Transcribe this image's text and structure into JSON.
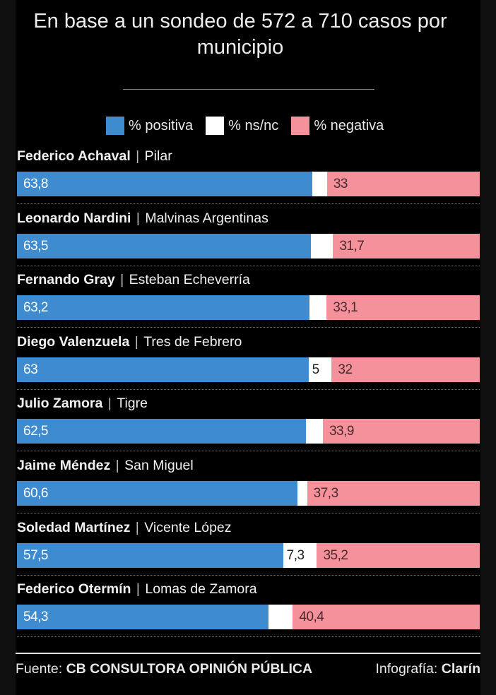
{
  "title": "En base a un sondeo de 572 a 710 casos por municipio",
  "legend": [
    {
      "label": "% positiva",
      "color": "#3e8bd0"
    },
    {
      "label": "% ns/nc",
      "color": "#ffffff"
    },
    {
      "label": "% negativa",
      "color": "#f5919a"
    }
  ],
  "chart_data": {
    "type": "bar",
    "orientation": "horizontal-stacked-100",
    "title": "En base a un sondeo de 572 a 710 casos por municipio",
    "categories": [
      {
        "name": "Federico Achaval",
        "place": "Pilar"
      },
      {
        "name": "Leonardo Nardini",
        "place": "Malvinas Argentinas"
      },
      {
        "name": "Fernando Gray",
        "place": "Esteban Echeverría"
      },
      {
        "name": "Diego Valenzuela",
        "place": "Tres de Febrero"
      },
      {
        "name": "Julio Zamora",
        "place": "Tigre"
      },
      {
        "name": "Jaime Méndez",
        "place": "San Miguel"
      },
      {
        "name": "Soledad Martínez",
        "place": "Vicente López"
      },
      {
        "name": "Federico Otermín",
        "place": "Lomas de Zamora"
      }
    ],
    "series": [
      {
        "name": "% positiva",
        "color": "#3e8bd0",
        "values": [
          63.8,
          63.5,
          63.2,
          63,
          62.5,
          60.6,
          57.5,
          54.3
        ],
        "labels": [
          "63,8",
          "63,5",
          "63,2",
          "63",
          "62,5",
          "60,6",
          "57,5",
          "54,3"
        ]
      },
      {
        "name": "% ns/nc",
        "color": "#ffffff",
        "values": [
          3.2,
          4.8,
          3.7,
          5,
          3.6,
          2.1,
          7.3,
          5.3
        ],
        "labels": [
          "",
          "",
          "",
          "5",
          "",
          "",
          "7,3",
          ""
        ]
      },
      {
        "name": "% negativa",
        "color": "#f5919a",
        "values": [
          33,
          31.7,
          33.1,
          32,
          33.9,
          37.3,
          35.2,
          40.4
        ],
        "labels": [
          "33",
          "31,7",
          "33,1",
          "32",
          "33,9",
          "37,3",
          "35,2",
          "40,4"
        ]
      }
    ],
    "xlim": [
      0,
      100
    ],
    "legend_position": "top"
  },
  "footer": {
    "source_prefix": "Fuente:",
    "source_name": "CB CONSULTORA OPINIÓN PÚBLICA",
    "credit_prefix": "Infografía:",
    "credit_name": "Clarín"
  }
}
